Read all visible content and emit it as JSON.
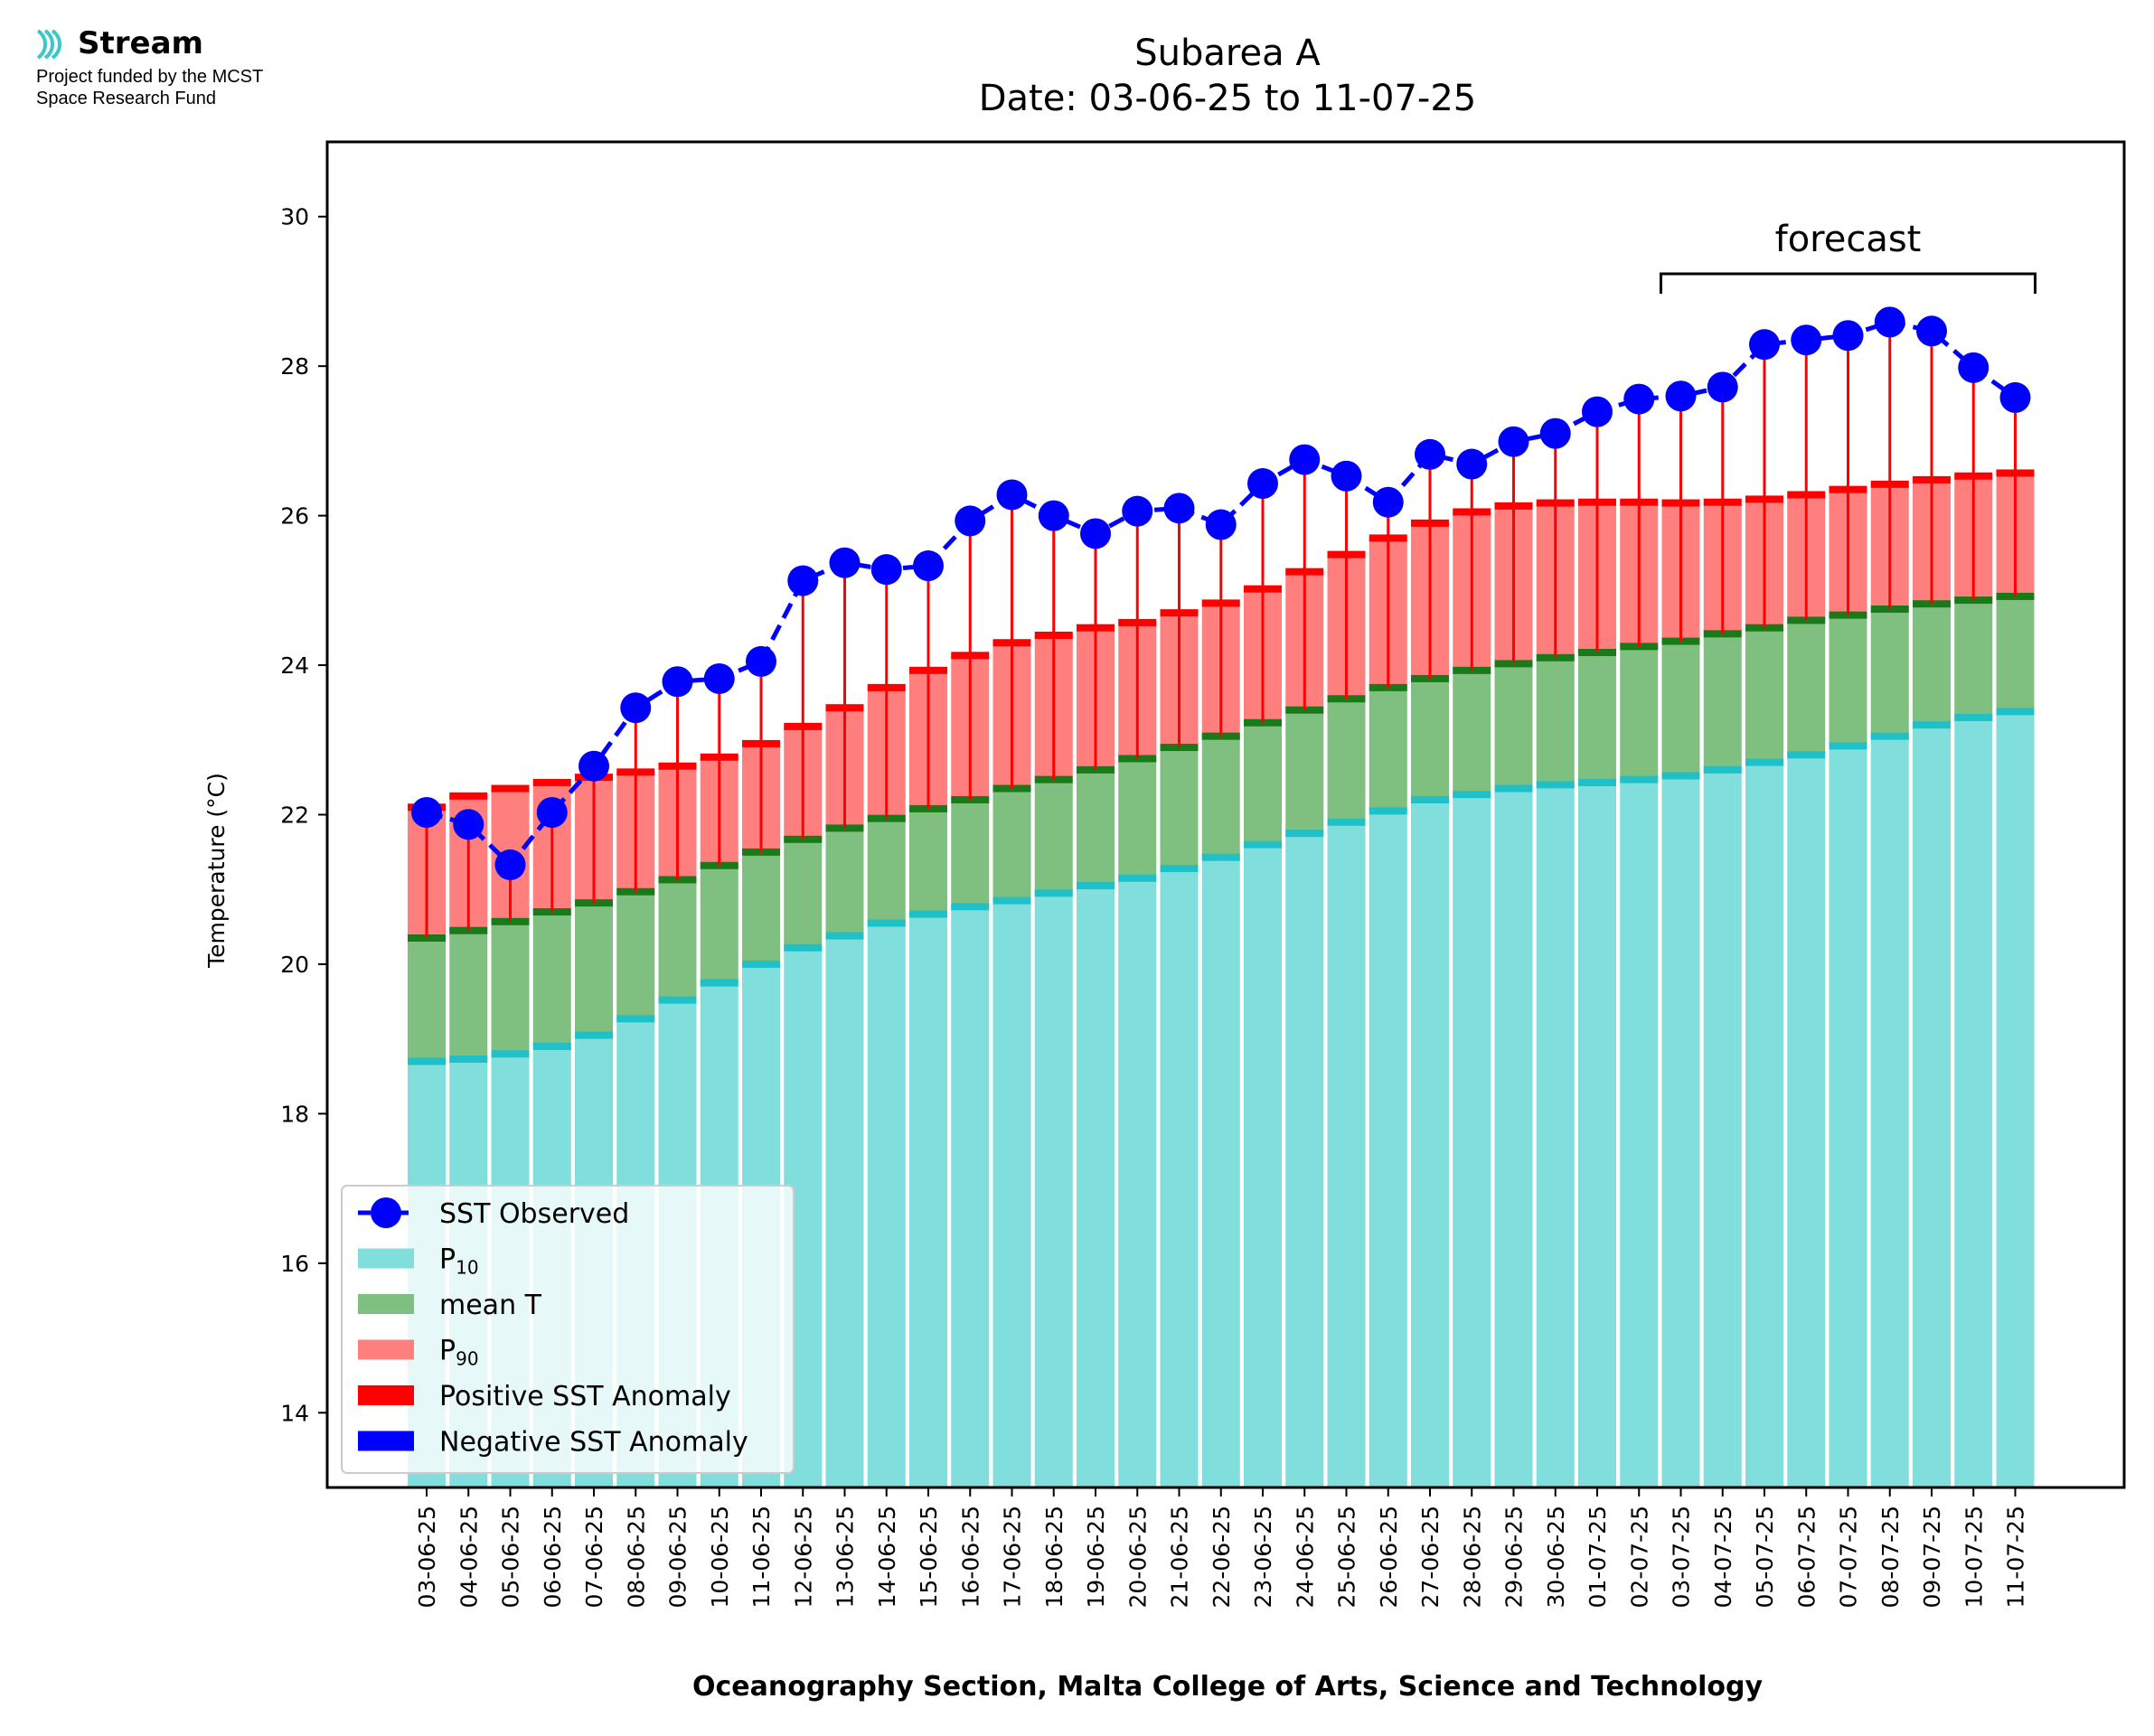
{
  "logo": {
    "brand": "Stream",
    "line1": "Project funded by the MCST",
    "line2": "Space Research Fund"
  },
  "chart_data": {
    "type": "bar",
    "title": "Subarea A",
    "subtitle": "Date: 03-06-25 to 11-07-25",
    "xlabel": "Oceanography Section, Malta College of Arts, Science and Technology",
    "ylabel": "Temperature (°C)",
    "ylim": [
      13,
      31
    ],
    "yticks": [
      14,
      16,
      18,
      20,
      22,
      24,
      26,
      28,
      30
    ],
    "grid": false,
    "legend_position": "lower-left",
    "annotation": "forecast",
    "forecast_range": [
      "03-07-25",
      "11-07-25"
    ],
    "categories": [
      "03-06-25",
      "04-06-25",
      "05-06-25",
      "06-06-25",
      "07-06-25",
      "08-06-25",
      "09-06-25",
      "10-06-25",
      "11-06-25",
      "12-06-25",
      "13-06-25",
      "14-06-25",
      "15-06-25",
      "16-06-25",
      "17-06-25",
      "18-06-25",
      "19-06-25",
      "20-06-25",
      "21-06-25",
      "22-06-25",
      "23-06-25",
      "24-06-25",
      "25-06-25",
      "26-06-25",
      "27-06-25",
      "28-06-25",
      "29-06-25",
      "30-06-25",
      "01-07-25",
      "02-07-25",
      "03-07-25",
      "04-07-25",
      "05-07-25",
      "06-07-25",
      "07-07-25",
      "08-07-25",
      "09-07-25",
      "10-07-25",
      "11-07-25"
    ],
    "series": [
      {
        "name": "SST Observed",
        "kind": "line",
        "color": "#0000ff",
        "values": [
          22.03,
          21.87,
          21.33,
          22.03,
          22.65,
          23.43,
          23.78,
          23.82,
          24.05,
          25.13,
          25.37,
          25.28,
          25.33,
          25.93,
          26.28,
          26.0,
          25.76,
          26.06,
          26.1,
          25.88,
          26.43,
          26.75,
          26.53,
          26.18,
          26.82,
          26.69,
          26.99,
          27.1,
          27.39,
          27.56,
          27.6,
          27.72,
          28.29,
          28.35,
          28.41,
          28.59,
          28.47,
          27.98,
          27.58
        ]
      },
      {
        "name": "P10",
        "kind": "bar",
        "color": "#80dedd",
        "values": [
          18.7,
          18.73,
          18.8,
          18.9,
          19.05,
          19.27,
          19.52,
          19.75,
          20.0,
          20.22,
          20.38,
          20.55,
          20.67,
          20.77,
          20.85,
          20.95,
          21.05,
          21.15,
          21.28,
          21.43,
          21.6,
          21.75,
          21.9,
          22.05,
          22.2,
          22.27,
          22.35,
          22.4,
          22.43,
          22.47,
          22.52,
          22.6,
          22.7,
          22.8,
          22.92,
          23.05,
          23.2,
          23.3,
          23.38
        ]
      },
      {
        "name": "mean T",
        "kind": "bar",
        "color": "#7fbf7f",
        "values": [
          20.35,
          20.45,
          20.57,
          20.7,
          20.82,
          20.97,
          21.13,
          21.32,
          21.5,
          21.67,
          21.82,
          21.95,
          22.08,
          22.2,
          22.35,
          22.47,
          22.6,
          22.75,
          22.9,
          23.05,
          23.23,
          23.4,
          23.55,
          23.7,
          23.82,
          23.93,
          24.02,
          24.1,
          24.17,
          24.25,
          24.32,
          24.42,
          24.5,
          24.6,
          24.67,
          24.75,
          24.82,
          24.87,
          24.92
        ]
      },
      {
        "name": "P90",
        "kind": "bar",
        "color": "#ff7f7f",
        "values": [
          22.1,
          22.25,
          22.35,
          22.43,
          22.5,
          22.57,
          22.65,
          22.77,
          22.95,
          23.18,
          23.43,
          23.7,
          23.93,
          24.13,
          24.3,
          24.4,
          24.5,
          24.57,
          24.7,
          24.83,
          25.02,
          25.25,
          25.48,
          25.7,
          25.9,
          26.05,
          26.13,
          26.17,
          26.18,
          26.18,
          26.17,
          26.18,
          26.22,
          26.28,
          26.35,
          26.42,
          26.48,
          26.53,
          26.57
        ]
      }
    ],
    "legend": {
      "observed": "SST Observed",
      "p10_base": "P",
      "p10_sub": "10",
      "mean": "mean T",
      "p90_base": "P",
      "p90_sub": "90",
      "pos": "Positive SST Anomaly",
      "neg": "Negative SST Anomaly"
    },
    "colors": {
      "p10_cap": "#20c0c8",
      "mean_cap": "#1a7a1a",
      "p90_cap": "#ff0000",
      "positive_anomaly": "#ff0000",
      "negative_anomaly": "#0000ff",
      "observed": "#0000ff"
    }
  }
}
